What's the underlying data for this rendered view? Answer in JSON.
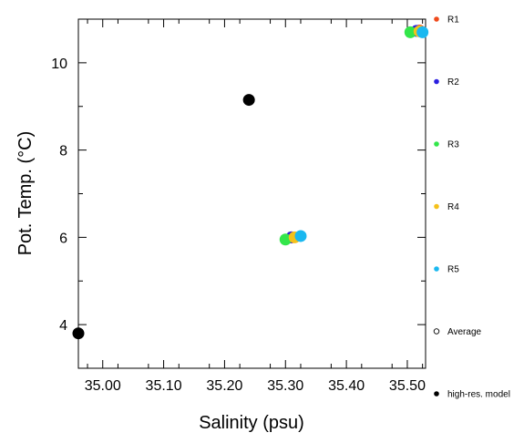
{
  "chart_data": {
    "type": "scatter",
    "xlabel": "Salinity (psu)",
    "ylabel": "Pot. Temp. (°C)",
    "xlim": [
      34.96,
      35.53
    ],
    "ylim": [
      3.0,
      11.0
    ],
    "x_ticks": [
      {
        "value": 35.0,
        "label": "35.00"
      },
      {
        "value": 35.1,
        "label": "35.10"
      },
      {
        "value": 35.2,
        "label": "35.20"
      },
      {
        "value": 35.3,
        "label": "35.30"
      },
      {
        "value": 35.4,
        "label": "35.40"
      },
      {
        "value": 35.5,
        "label": "35.50"
      }
    ],
    "y_ticks": [
      {
        "value": 4,
        "label": "4"
      },
      {
        "value": 6,
        "label": "6"
      },
      {
        "value": 8,
        "label": "8"
      },
      {
        "value": 10,
        "label": "10"
      }
    ],
    "grid": false,
    "legend_position": "right",
    "series": [
      {
        "name": "R1",
        "color": "#ef4a1c",
        "points": [
          [
            35.31,
            6.0
          ],
          [
            35.52,
            10.74
          ]
        ]
      },
      {
        "name": "R2",
        "color": "#2b1fe0",
        "points": [
          [
            35.31,
            6.0
          ],
          [
            35.515,
            10.73
          ]
        ]
      },
      {
        "name": "R3",
        "color": "#33e64a",
        "points": [
          [
            35.3,
            5.95
          ],
          [
            35.505,
            10.7
          ]
        ]
      },
      {
        "name": "R4",
        "color": "#f5c11a",
        "points": [
          [
            35.315,
            6.0
          ],
          [
            35.52,
            10.72
          ]
        ]
      },
      {
        "name": "R5",
        "color": "#1ab8f0",
        "points": [
          [
            35.325,
            6.03
          ],
          [
            35.525,
            10.7
          ]
        ]
      },
      {
        "name": "Average",
        "color": "#000000",
        "marker": "hollow",
        "points": []
      },
      {
        "name": "high-res. model",
        "color": "#000000",
        "marker": "filled",
        "points": [
          [
            34.96,
            3.8
          ],
          [
            35.24,
            9.15
          ]
        ]
      }
    ]
  }
}
